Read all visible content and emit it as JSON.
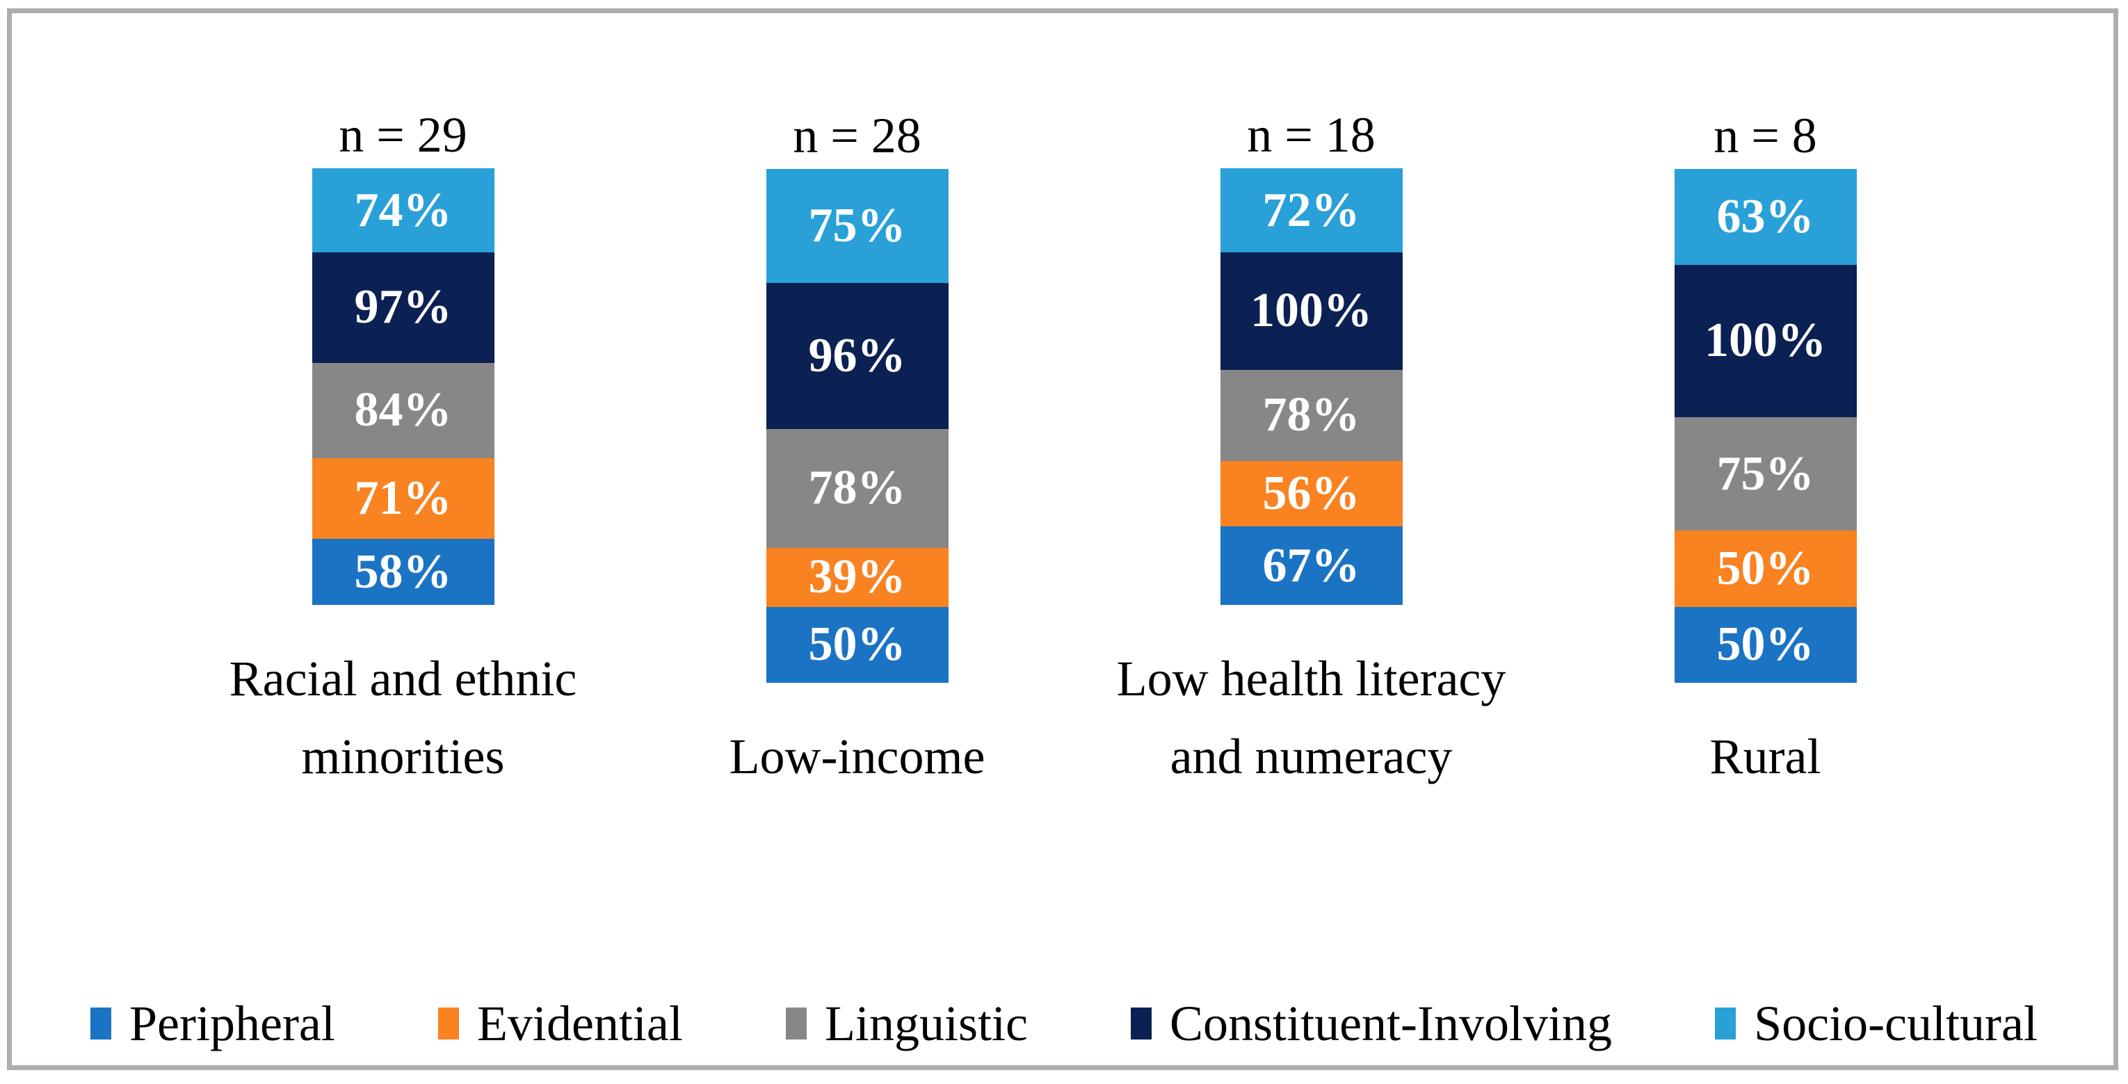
{
  "chart_data": {
    "type": "bar",
    "variant": "stacked-percentage-labels-equal-height-columns",
    "title": "",
    "categories": [
      "Racial and ethnic minorities",
      "Low-income",
      "Low health literacy and numeracy",
      "Rural"
    ],
    "group_sample_sizes": [
      "n = 29",
      "n = 28",
      "n = 18",
      "n = 8"
    ],
    "series": [
      {
        "name": "Peripheral",
        "color": "#1b73c4",
        "values": [
          58,
          50,
          67,
          50
        ]
      },
      {
        "name": "Evidential",
        "color": "#f98221",
        "values": [
          71,
          39,
          56,
          50
        ]
      },
      {
        "name": "Linguistic",
        "color": "#878787",
        "values": [
          84,
          78,
          78,
          75
        ]
      },
      {
        "name": "Constituent-Involving",
        "color": "#0b2053",
        "values": [
          97,
          96,
          100,
          100
        ]
      },
      {
        "name": "Socio-cultural",
        "color": "#29a0d8",
        "values": [
          74,
          75,
          72,
          63
        ]
      }
    ],
    "stack_order_top_to_bottom": [
      "Socio-cultural",
      "Constituent-Involving",
      "Linguistic",
      "Evidential",
      "Peripheral"
    ],
    "data_label_suffix": "%",
    "data_label_color": "#ffffff",
    "legend_position": "bottom",
    "grid": false,
    "axes_visible": false,
    "frame_border_color": "#b1adad",
    "background_color": "#ffffff"
  }
}
